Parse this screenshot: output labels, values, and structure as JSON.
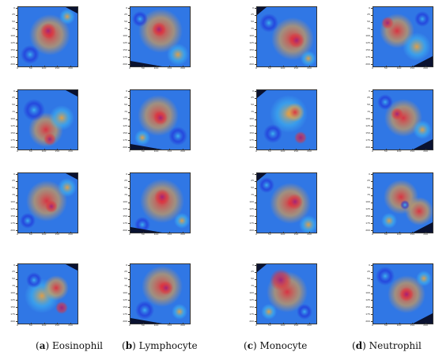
{
  "captions": [
    {
      "open": "(",
      "letter": "a",
      "close": ")",
      "name": "Eosinophil"
    },
    {
      "open": "(",
      "letter": "b",
      "close": ")",
      "name": "Lymphocyte"
    },
    {
      "open": "(",
      "letter": "c",
      "close": ")",
      "name": "Monocyte"
    },
    {
      "open": "(",
      "letter": "d",
      "close": ")",
      "name": "Neutrophil"
    }
  ],
  "axis": {
    "y_ticks": [
      "0",
      "25",
      "50",
      "75",
      "100",
      "125",
      "150",
      "175",
      "200"
    ],
    "x_ticks": [
      "0",
      "50",
      "100",
      "150",
      "200"
    ]
  },
  "colors": {
    "cold": "#1f2bd8",
    "cool": "#3fb6f0",
    "warm": "#e8a040",
    "hot": "#e0303c",
    "cell": "#a0207c",
    "corner_dark": "#0a1230"
  }
}
